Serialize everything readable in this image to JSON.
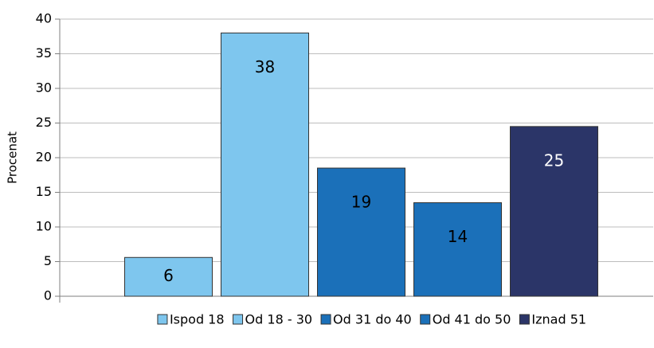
{
  "chart_data": {
    "type": "bar",
    "y_label": "Procenat",
    "categories": [
      null
    ],
    "series": [
      {
        "name": "Ispod 18",
        "color": "#7ec6ee",
        "values": [
          5.6
        ],
        "value_labels": [
          "6"
        ]
      },
      {
        "name": "Od 18 - 30",
        "color": "#7ec6ee",
        "values": [
          38
        ],
        "value_labels": [
          "38"
        ]
      },
      {
        "name": "Od 31 do 40",
        "color": "#1b70b9",
        "values": [
          18.5
        ],
        "value_labels": [
          "19"
        ]
      },
      {
        "name": "Od 41 do 50",
        "color": "#1b70b9",
        "values": [
          13.5
        ],
        "value_labels": [
          "14"
        ]
      },
      {
        "name": "Iznad 51",
        "color": "#2b3568",
        "values": [
          24.5
        ],
        "value_labels": [
          "25"
        ]
      }
    ],
    "ylim": [
      0,
      40
    ],
    "yticks": [
      0,
      5,
      10,
      15,
      20,
      25,
      30,
      35,
      40
    ],
    "grid": true,
    "legend": "bottom"
  }
}
